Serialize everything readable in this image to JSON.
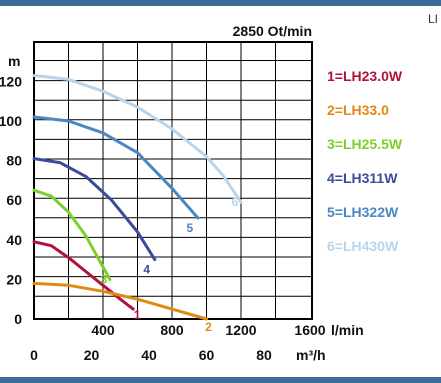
{
  "corner_text": "LI",
  "colors": {
    "band": "#3d6b9a",
    "grid": "#000000"
  },
  "chart_data": {
    "type": "line",
    "title": "2850 Ot/min",
    "ylabel": "m",
    "xlabel_primary": "l/min",
    "xlabel_secondary": "m³/h",
    "xlim": [
      0,
      1600
    ],
    "ylim": [
      0,
      130
    ],
    "y_ticks": [
      "0",
      "20",
      "40",
      "60",
      "80",
      "100",
      "120"
    ],
    "x_ticks_primary": [
      "400",
      "800",
      "1200",
      "1600"
    ],
    "x_ticks_secondary": [
      "0",
      "20",
      "40",
      "60",
      "80"
    ],
    "grid": true,
    "legend_position": "right",
    "series": [
      {
        "name": "1=LH23.0W",
        "label": "1",
        "color": "#b0123c",
        "x": [
          0,
          100,
          200,
          300,
          400,
          500,
          575
        ],
        "y": [
          39,
          37,
          31,
          24,
          17,
          10,
          5
        ]
      },
      {
        "name": "2=LH33.0",
        "label": "2",
        "color": "#e08a12",
        "x": [
          0,
          200,
          400,
          600,
          800,
          1000
        ],
        "y": [
          18,
          17,
          14,
          10,
          5,
          0
        ]
      },
      {
        "name": "3=LH25.5W",
        "label": "3",
        "color": "#7bd02a",
        "x": [
          0,
          100,
          200,
          300,
          370,
          440
        ],
        "y": [
          65,
          62,
          54,
          42,
          31,
          20
        ]
      },
      {
        "name": "4=LH311W",
        "label": "4",
        "color": "#3b4a9a",
        "x": [
          0,
          150,
          300,
          450,
          600,
          700
        ],
        "y": [
          81,
          79,
          72,
          60,
          44,
          30
        ]
      },
      {
        "name": "5=LH322W",
        "label": "5",
        "color": "#4b86c4",
        "x": [
          0,
          200,
          400,
          600,
          800,
          950
        ],
        "y": [
          102,
          100,
          94,
          84,
          66,
          51
        ]
      },
      {
        "name": "6=LH430W",
        "label": "6",
        "color": "#b9d4ea",
        "x": [
          0,
          200,
          400,
          600,
          800,
          1000,
          1100,
          1200
        ],
        "y": [
          123,
          121,
          115,
          107,
          96,
          82,
          72,
          59
        ]
      }
    ]
  }
}
